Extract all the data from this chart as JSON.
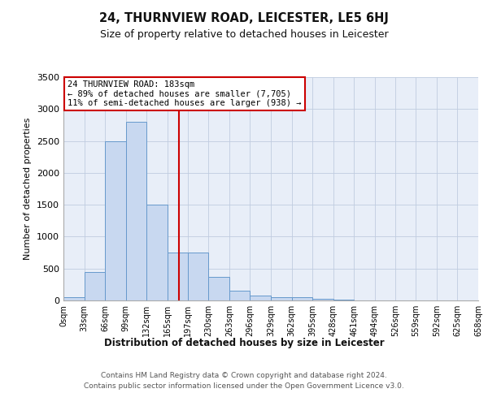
{
  "title": "24, THURNVIEW ROAD, LEICESTER, LE5 6HJ",
  "subtitle": "Size of property relative to detached houses in Leicester",
  "xlabel": "Distribution of detached houses by size in Leicester",
  "ylabel": "Number of detached properties",
  "annotation_line1": "24 THURNVIEW ROAD: 183sqm",
  "annotation_line2": "← 89% of detached houses are smaller (7,705)",
  "annotation_line3": "11% of semi-detached houses are larger (938) →",
  "property_size": 183,
  "bin_edges": [
    0,
    33,
    66,
    99,
    132,
    165,
    197,
    230,
    263,
    296,
    329,
    362,
    395,
    428,
    461,
    494,
    526,
    559,
    592,
    625,
    658
  ],
  "bar_heights": [
    50,
    450,
    2500,
    2800,
    1500,
    750,
    750,
    375,
    150,
    75,
    50,
    50,
    25,
    10,
    5,
    5,
    5,
    5,
    2,
    1
  ],
  "bar_color": "#c8d8f0",
  "bar_edge_color": "#6699cc",
  "line_color": "#cc0000",
  "annotation_box_color": "#ffffff",
  "annotation_box_edge": "#cc0000",
  "background_color": "#e8eef8",
  "ylim": [
    0,
    3500
  ],
  "yticks": [
    0,
    500,
    1000,
    1500,
    2000,
    2500,
    3000,
    3500
  ],
  "footer_line1": "Contains HM Land Registry data © Crown copyright and database right 2024.",
  "footer_line2": "Contains public sector information licensed under the Open Government Licence v3.0."
}
